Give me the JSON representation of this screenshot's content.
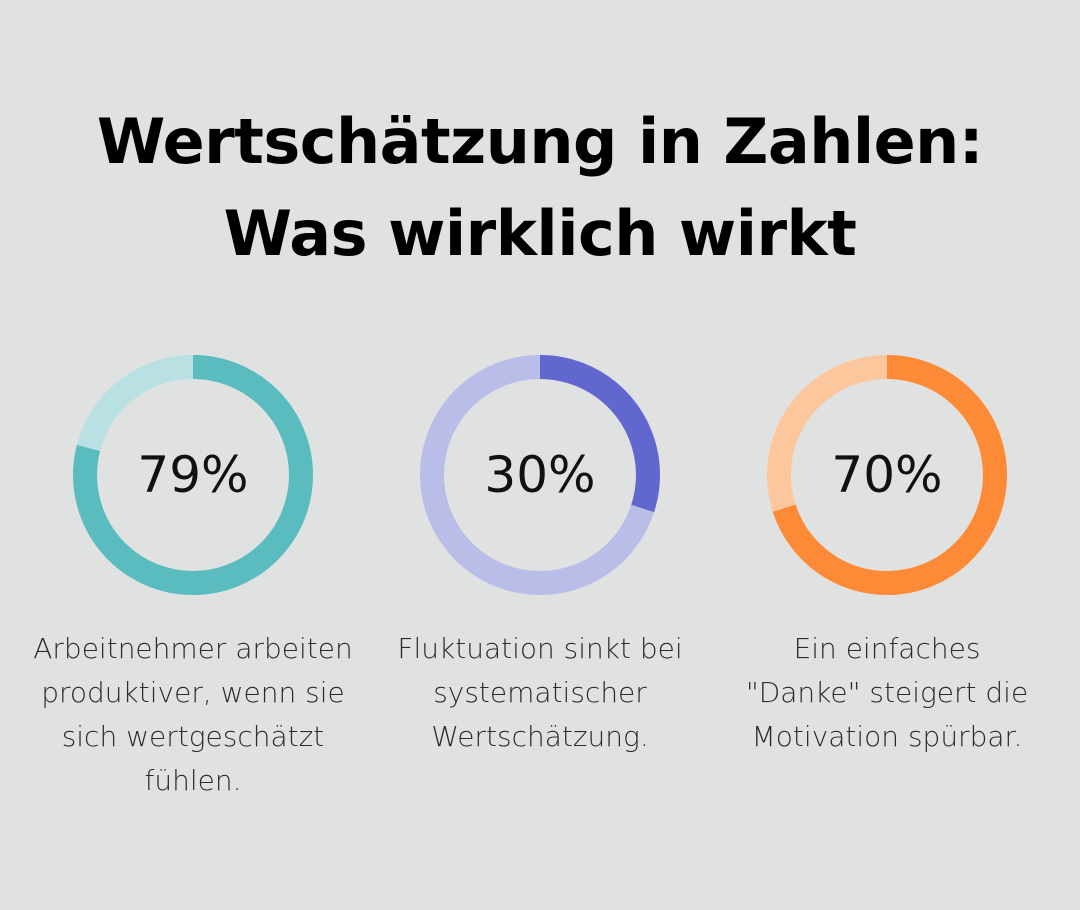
{
  "title": {
    "line1": "Wertschätzung in Zahlen:",
    "line2": "Was wirklich wirkt"
  },
  "chart_data": {
    "type": "donut",
    "title": "Wertschätzung in Zahlen: Was wirklich wirkt",
    "items": [
      {
        "label": "79%",
        "value": 79,
        "description": "Arbeitnehmer arbeiten produktiver, wenn sie sich wertgeschätzt fühlen.",
        "color": "#5bbcc0",
        "track_color": "#b9e1e3"
      },
      {
        "label": "30%",
        "value": 30,
        "description": "Fluktuation sinkt bei systematischer Wertschätzung.",
        "color": "#6266cf",
        "track_color": "#bbbde9"
      },
      {
        "label": "70%",
        "value": 70,
        "description": "Ein einfaches \"Danke\" steigert die Motivation spürbar.",
        "color": "#fd8a36",
        "track_color": "#fdc79d"
      }
    ]
  }
}
